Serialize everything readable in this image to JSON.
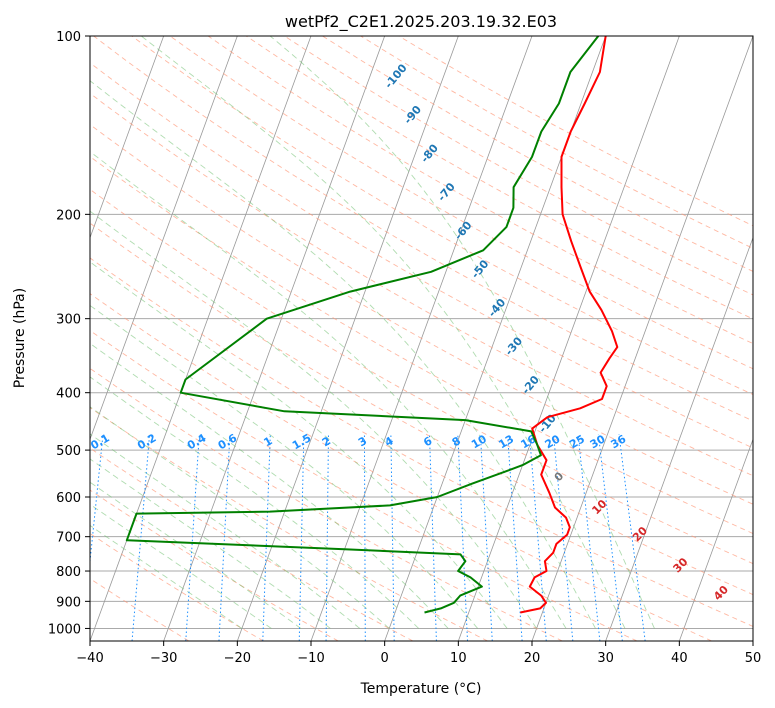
{
  "chart_data": {
    "type": "skew-t",
    "title": "wetPf2_C2E1.2025.203.19.32.E03",
    "xlabel": "Temperature (°C)",
    "ylabel": "Pressure (hPa)",
    "xlim": [
      -40,
      50
    ],
    "ylim": [
      1050,
      100
    ],
    "y_scale": "log",
    "grid": true,
    "x_ticks": [
      -40,
      -30,
      -20,
      -10,
      0,
      10,
      20,
      30,
      40,
      50
    ],
    "y_ticks": [
      100,
      200,
      300,
      400,
      500,
      600,
      700,
      800,
      900,
      1000
    ],
    "series": [
      {
        "color": "#ff0000",
        "points": [
          [
            17,
            940
          ],
          [
            19.5,
            925
          ],
          [
            20,
            905
          ],
          [
            19,
            880
          ],
          [
            17,
            850
          ],
          [
            17.2,
            820
          ],
          [
            18.5,
            800
          ],
          [
            17.8,
            770
          ],
          [
            18.5,
            745
          ],
          [
            18.5,
            720
          ],
          [
            19.5,
            695
          ],
          [
            19.5,
            675
          ],
          [
            18.5,
            650
          ],
          [
            16.5,
            625
          ],
          [
            15,
            590
          ],
          [
            13,
            550
          ],
          [
            13,
            520
          ],
          [
            11,
            490
          ],
          [
            9.5,
            460
          ],
          [
            11,
            440
          ],
          [
            15,
            425
          ],
          [
            17.5,
            410
          ],
          [
            17.5,
            390
          ],
          [
            16,
            370
          ],
          [
            16.5,
            350
          ],
          [
            17,
            335
          ],
          [
            15.5,
            315
          ],
          [
            13,
            290
          ],
          [
            10.5,
            270
          ],
          [
            8,
            245
          ],
          [
            5.5,
            222
          ],
          [
            3,
            200
          ],
          [
            1.5,
            180
          ],
          [
            0,
            160
          ],
          [
            0,
            145
          ],
          [
            0.5,
            130
          ],
          [
            1,
            115
          ],
          [
            0,
            100
          ]
        ]
      },
      {
        "color": "#008000",
        "points": [
          [
            4,
            940
          ],
          [
            6,
            925
          ],
          [
            7.5,
            905
          ],
          [
            8,
            880
          ],
          [
            10.5,
            850
          ],
          [
            8.5,
            820
          ],
          [
            6.5,
            800
          ],
          [
            7,
            770
          ],
          [
            6,
            750
          ],
          [
            -10,
            735
          ],
          [
            -40,
            710
          ],
          [
            -40,
            640
          ],
          [
            -22,
            635
          ],
          [
            -6,
            620
          ],
          [
            0,
            600
          ],
          [
            4,
            570
          ],
          [
            7,
            550
          ],
          [
            10,
            530
          ],
          [
            12,
            510
          ],
          [
            11,
            490
          ],
          [
            9.5,
            465
          ],
          [
            0,
            445
          ],
          [
            -25,
            430
          ],
          [
            -40,
            400
          ],
          [
            -40,
            380
          ],
          [
            -32,
            300
          ],
          [
            -22,
            270
          ],
          [
            -12,
            250
          ],
          [
            -6,
            230
          ],
          [
            -4,
            210
          ],
          [
            -4,
            195
          ],
          [
            -5,
            180
          ],
          [
            -4,
            160
          ],
          [
            -4,
            145
          ],
          [
            -3,
            130
          ],
          [
            -3,
            115
          ],
          [
            -1,
            100
          ]
        ]
      }
    ],
    "dry_adiabat_labels": [
      "-100",
      "-90",
      "-80",
      "-70",
      "-60",
      "-50",
      "-40",
      "-30",
      "-20",
      "-10"
    ],
    "mixing_ratio_labels": [
      "0.1",
      "0.2",
      "0.4",
      "0.6",
      "1",
      "1.5",
      "2",
      "3",
      "4",
      "6",
      "8",
      "10",
      "13",
      "16",
      "20",
      "25",
      "30",
      "36"
    ],
    "moist_adiabat_labels": [
      "0",
      "10",
      "20",
      "30",
      "40"
    ]
  },
  "colors": {
    "dry_adiabat_line": "#ff9a7a",
    "moist_adiabat_line": "#6fbf6f",
    "mixing_ratio_line": "#1e90ff",
    "isotherm": "#999999",
    "dry_label": "#1f77b4",
    "mixing_label": "#1e90ff",
    "moist_label": "#d62728"
  }
}
